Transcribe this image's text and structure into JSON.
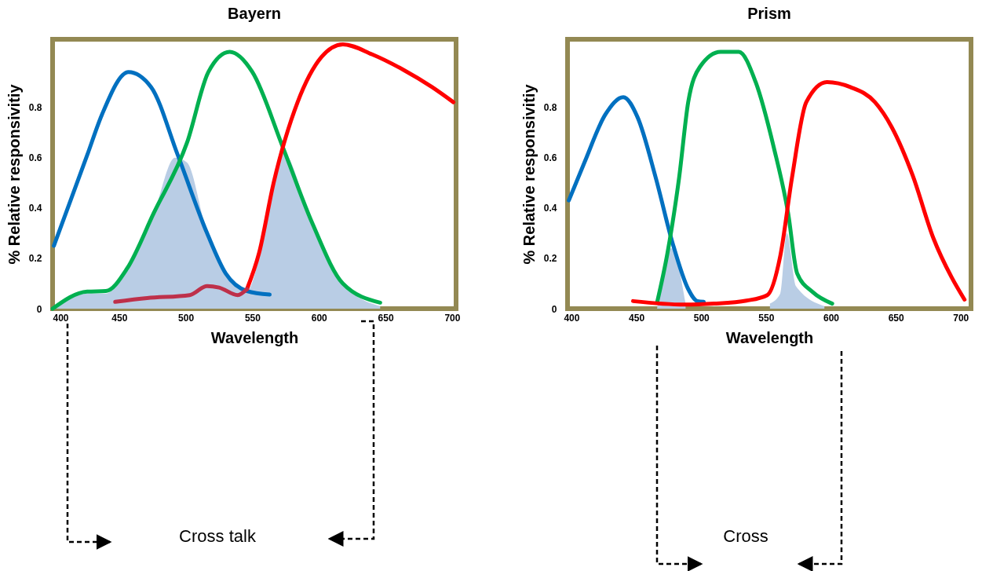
{
  "chart_data": [
    {
      "type": "line",
      "title": "Bayern",
      "xlabel": "Wavelength",
      "ylabel": "% Relative responsivitiy",
      "xlim": [
        400,
        703
      ],
      "ylim": [
        0,
        1.07
      ],
      "xticks": [
        400,
        450,
        500,
        550,
        600,
        650,
        700
      ],
      "yticks": [
        0,
        0.2,
        0.4,
        0.6,
        0.8
      ],
      "grid": false,
      "annotations": [
        "Cross talk"
      ],
      "series": [
        {
          "type": "area",
          "color": "#b9cde5",
          "x": [
            400,
            426,
            440,
            456,
            476,
            492,
            501,
            516,
            530,
            546,
            555,
            566,
            573,
            595,
            618,
            646
          ],
          "values": [
            0,
            0.06,
            0.06,
            0.16,
            0.38,
            0.6,
            0.58,
            0.3,
            0.13,
            0.07,
            0.2,
            0.5,
            0.62,
            0.34,
            0.1,
            0.01
          ]
        },
        {
          "color": "#0070c0",
          "x": [
            401,
            426,
            437,
            457,
            474,
            494,
            516,
            530,
            546,
            563
          ],
          "values": [
            0.25,
            0.61,
            0.77,
            0.94,
            0.88,
            0.61,
            0.3,
            0.14,
            0.07,
            0.056
          ]
        },
        {
          "color": "#00b050",
          "x": [
            400,
            426,
            440,
            456,
            476,
            501,
            517,
            533,
            550,
            573,
            595,
            618,
            646
          ],
          "values": [
            0,
            0.068,
            0.07,
            0.16,
            0.38,
            0.66,
            0.94,
            1.02,
            0.94,
            0.64,
            0.34,
            0.1,
            0.024
          ]
        },
        {
          "color": "#ff0000",
          "x": [
            546,
            555,
            566,
            584,
            602,
            618,
            640,
            663,
            685,
            701
          ],
          "values": [
            0.078,
            0.22,
            0.5,
            0.82,
            1.0,
            1.05,
            1.01,
            0.95,
            0.88,
            0.82
          ]
        },
        {
          "color": "#be304a",
          "x": [
            447,
            471,
            503,
            516,
            525,
            539,
            546
          ],
          "values": [
            0.027,
            0.042,
            0.054,
            0.09,
            0.084,
            0.054,
            0.078
          ]
        }
      ]
    },
    {
      "type": "line",
      "title": "Prism",
      "xlabel": "Wavelength",
      "ylabel": "% Relative responsivitiy",
      "xlim": [
        397,
        708
      ],
      "ylim": [
        0,
        1.07
      ],
      "xticks": [
        400,
        450,
        500,
        550,
        600,
        650,
        700
      ],
      "yticks": [
        0,
        0.2,
        0.4,
        0.6,
        0.8
      ],
      "grid": false,
      "annotations": [
        "Cross"
      ],
      "series": [
        {
          "type": "area",
          "color": "#b9cde5",
          "x": [
            466,
            477,
            488
          ],
          "values": [
            0,
            0.24,
            0.02
          ]
        },
        {
          "type": "area",
          "color": "#b9cde5",
          "x": [
            553,
            561,
            566,
            573,
            595
          ],
          "values": [
            0.02,
            0.06,
            0.3,
            0.09,
            0.01
          ]
        },
        {
          "color": "#0070c0",
          "x": [
            398,
            410,
            426,
            440,
            451,
            465,
            478,
            490,
            497,
            502
          ],
          "values": [
            0.43,
            0.58,
            0.77,
            0.84,
            0.76,
            0.52,
            0.26,
            0.078,
            0.03,
            0.027
          ]
        },
        {
          "color": "#00b050",
          "x": [
            466,
            474,
            483,
            490,
            499,
            515,
            529,
            542,
            556,
            567,
            574,
            586,
            601
          ],
          "values": [
            0.024,
            0.22,
            0.52,
            0.82,
            0.96,
            1.02,
            1.02,
            0.9,
            0.64,
            0.38,
            0.14,
            0.066,
            0.02
          ]
        },
        {
          "color": "#ff0000",
          "x": [
            447.5,
            487,
            510,
            535,
            551,
            561,
            570,
            581,
            597,
            615,
            634,
            647,
            663,
            679,
            693,
            703
          ],
          "values": [
            0.03,
            0.016,
            0.02,
            0.032,
            0.054,
            0.21,
            0.52,
            0.82,
            0.9,
            0.88,
            0.82,
            0.72,
            0.53,
            0.28,
            0.125,
            0.036
          ]
        }
      ]
    }
  ]
}
